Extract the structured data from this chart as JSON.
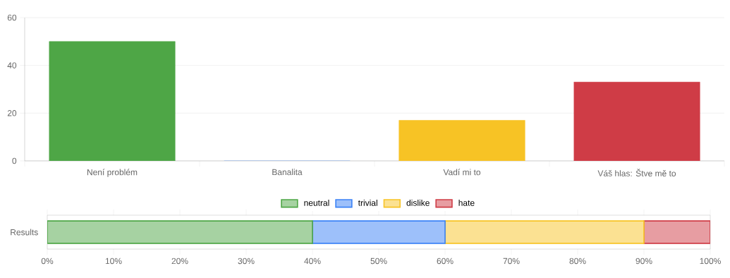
{
  "chart_data": [
    {
      "type": "bar",
      "categories": [
        "Není problém",
        "Banalita",
        "Vadí mi to",
        "Váš hlas: Štve mě to"
      ],
      "values": [
        50,
        0,
        17,
        33
      ],
      "colors": [
        "#4ea646",
        "#3b82f6",
        "#f7c325",
        "#cf3c46"
      ],
      "ylim": [
        0,
        60
      ],
      "yticks": [
        0,
        20,
        40,
        60
      ],
      "grid": "y",
      "legend": false
    },
    {
      "type": "bar",
      "orientation": "horizontal",
      "stacked": true,
      "categories": [
        "Results"
      ],
      "series": [
        {
          "name": "neutral",
          "color": "#4ea646",
          "values": [
            40
          ]
        },
        {
          "name": "trivial",
          "color": "#3b82f6",
          "values": [
            20
          ]
        },
        {
          "name": "dislike",
          "color": "#f7c325",
          "values": [
            30
          ]
        },
        {
          "name": "hate",
          "color": "#cf3c46",
          "values": [
            10
          ]
        }
      ],
      "xlim": [
        0,
        100
      ],
      "xticks": [
        {
          "value": 0,
          "label": "0%"
        },
        {
          "value": 10,
          "label": "10%"
        },
        {
          "value": 20,
          "label": "20%"
        },
        {
          "value": 30,
          "label": "30%"
        },
        {
          "value": 40,
          "label": "40%"
        },
        {
          "value": 50,
          "label": "50%"
        },
        {
          "value": 60,
          "label": "60%"
        },
        {
          "value": 70,
          "label": "70%"
        },
        {
          "value": 80,
          "label": "80%"
        },
        {
          "value": 90,
          "label": "90%"
        },
        {
          "value": 100,
          "label": "100%"
        }
      ],
      "grid": false,
      "legend": "top"
    }
  ]
}
